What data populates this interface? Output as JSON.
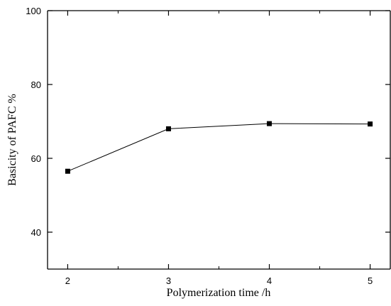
{
  "chart_data": {
    "type": "line",
    "title": "",
    "xlabel": "Polymerization time /h",
    "ylabel": "Basicity of PAFC %",
    "xlim": [
      1.8,
      5.2
    ],
    "ylim": [
      30,
      100
    ],
    "x_ticks": [
      2,
      3,
      4,
      5
    ],
    "y_ticks": [
      40,
      60,
      80,
      100
    ],
    "x_tick_labels": [
      "2",
      "3",
      "4",
      "5"
    ],
    "y_tick_labels": [
      "40",
      "60",
      "80",
      "100"
    ],
    "grid": false,
    "legend": "none",
    "marker": "square",
    "colors": {
      "line": "#000000",
      "marker": "#000000",
      "axes": "#000000"
    },
    "series": [
      {
        "x": [
          2,
          3,
          4,
          5
        ],
        "values": [
          56.5,
          68.0,
          69.4,
          69.3
        ]
      }
    ]
  }
}
